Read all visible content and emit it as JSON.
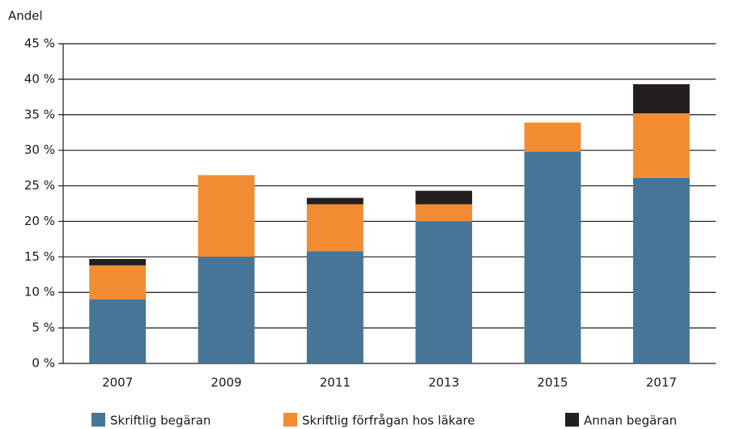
{
  "chart_data": {
    "type": "bar",
    "stacked": true,
    "y_axis_label": "Andel",
    "categories": [
      "2007",
      "2009",
      "2011",
      "2013",
      "2015",
      "2017"
    ],
    "series": [
      {
        "name": "Skriftlig begäran",
        "color": "#467597",
        "values": [
          9.0,
          15.0,
          15.8,
          20.0,
          29.8,
          26.1
        ]
      },
      {
        "name": "Skriftlig förfrågan hos läkare",
        "color": "#f28c33",
        "values": [
          4.8,
          11.5,
          6.6,
          2.4,
          4.1,
          9.1
        ]
      },
      {
        "name": "Annan begäran",
        "color": "#231f20",
        "values": [
          0.9,
          0,
          0.9,
          1.9,
          0,
          4.1
        ]
      }
    ],
    "ylim": [
      0,
      45
    ],
    "yticks": [
      {
        "value": 0,
        "label": "0 %"
      },
      {
        "value": 5,
        "label": "5 %"
      },
      {
        "value": 10,
        "label": "10 %"
      },
      {
        "value": 15,
        "label": "15 %"
      },
      {
        "value": 20,
        "label": "20 %"
      },
      {
        "value": 25,
        "label": "25 %"
      },
      {
        "value": 30,
        "label": "30 %"
      },
      {
        "value": 35,
        "label": "35 %"
      },
      {
        "value": 40,
        "label": "40 %"
      },
      {
        "value": 45,
        "label": "45 %"
      }
    ],
    "grid": true
  }
}
